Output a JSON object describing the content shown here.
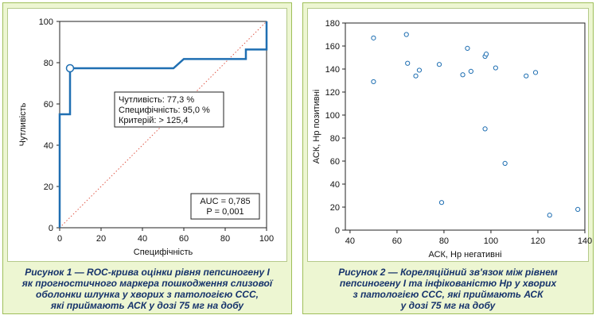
{
  "figure1": {
    "caption": [
      "Рисунок 1 — ROC-крива оцінки рівня пепсиногену I",
      "як прогностичного маркера пошкодження слизової",
      "оболонки шлунка у хворих з патологією ССС,",
      "які приймають АСК у дозі 75 мг на добу"
    ],
    "chart_data": {
      "type": "line",
      "xlabel": "Специфічність",
      "ylabel": "Чутливість",
      "xlim": [
        0,
        100
      ],
      "ylim": [
        0,
        100
      ],
      "xticks": [
        "0",
        "20",
        "40",
        "60",
        "80",
        "100"
      ],
      "yticks": [
        "0",
        "20",
        "40",
        "60",
        "80",
        "100"
      ],
      "series": [
        {
          "values_x": [
            0,
            0,
            5,
            5,
            55,
            60,
            90,
            90,
            100,
            100
          ],
          "values_y": [
            0,
            55,
            55,
            77.3,
            77.3,
            81.8,
            81.8,
            86.4,
            86.4,
            100
          ],
          "color": "#1f6fb2"
        }
      ],
      "reference_line": {
        "x": [
          0,
          100
        ],
        "y": [
          0,
          100
        ],
        "color": "#e05a4a"
      },
      "marker": {
        "x": 5,
        "y": 77.3
      },
      "annotation_criterion": [
        "Чутливість: 77,3 %",
        "Специфічність: 95,0 %",
        "Критерій: > 125,4"
      ],
      "annotation_auc": [
        "AUC = 0,785",
        "P = 0,001"
      ]
    }
  },
  "figure2": {
    "caption": [
      "Рисунок 2 — Кореляційний зв'язок між рівнем",
      "пепсиногену I та інфікованістю Hp у хворих",
      "з патологією ССС, які приймають АСК",
      "у дозі 75 мг на добу"
    ],
    "chart_data": {
      "type": "scatter",
      "xlabel": "АСК, Hp негативні",
      "ylabel": "АСК, Hp позитивні",
      "xlim": [
        38,
        140
      ],
      "ylim": [
        0,
        180
      ],
      "xticks": [
        40,
        60,
        80,
        100,
        120,
        140
      ],
      "yticks": [
        0,
        20,
        40,
        60,
        80,
        100,
        120,
        140,
        160,
        180
      ],
      "points": [
        [
          50,
          167
        ],
        [
          50,
          129
        ],
        [
          64,
          170
        ],
        [
          64.5,
          145
        ],
        [
          68,
          134
        ],
        [
          69.5,
          139
        ],
        [
          78,
          144
        ],
        [
          79,
          24
        ],
        [
          88,
          135
        ],
        [
          90,
          158
        ],
        [
          91.5,
          138
        ],
        [
          97.5,
          151
        ],
        [
          98,
          153
        ],
        [
          97.5,
          88
        ],
        [
          102,
          141
        ],
        [
          106,
          58
        ],
        [
          115,
          134
        ],
        [
          119,
          137
        ],
        [
          125,
          13
        ],
        [
          137,
          18
        ]
      ],
      "point_color": "#1f6fb2"
    }
  }
}
